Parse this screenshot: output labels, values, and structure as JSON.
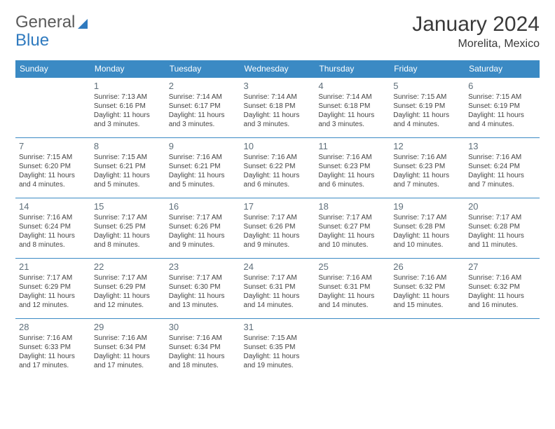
{
  "logo": {
    "part1": "General",
    "part2": "Blue"
  },
  "title": "January 2024",
  "location": "Morelita, Mexico",
  "colors": {
    "header_bg": "#3b8ac4",
    "header_text": "#ffffff",
    "rule": "#3b8ac4",
    "daynum": "#5f6f7a",
    "body_text": "#444444"
  },
  "weekdays": [
    "Sunday",
    "Monday",
    "Tuesday",
    "Wednesday",
    "Thursday",
    "Friday",
    "Saturday"
  ],
  "weeks": [
    [
      null,
      {
        "n": "1",
        "sr": "Sunrise: 7:13 AM",
        "ss": "Sunset: 6:16 PM",
        "d1": "Daylight: 11 hours",
        "d2": "and 3 minutes."
      },
      {
        "n": "2",
        "sr": "Sunrise: 7:14 AM",
        "ss": "Sunset: 6:17 PM",
        "d1": "Daylight: 11 hours",
        "d2": "and 3 minutes."
      },
      {
        "n": "3",
        "sr": "Sunrise: 7:14 AM",
        "ss": "Sunset: 6:18 PM",
        "d1": "Daylight: 11 hours",
        "d2": "and 3 minutes."
      },
      {
        "n": "4",
        "sr": "Sunrise: 7:14 AM",
        "ss": "Sunset: 6:18 PM",
        "d1": "Daylight: 11 hours",
        "d2": "and 3 minutes."
      },
      {
        "n": "5",
        "sr": "Sunrise: 7:15 AM",
        "ss": "Sunset: 6:19 PM",
        "d1": "Daylight: 11 hours",
        "d2": "and 4 minutes."
      },
      {
        "n": "6",
        "sr": "Sunrise: 7:15 AM",
        "ss": "Sunset: 6:19 PM",
        "d1": "Daylight: 11 hours",
        "d2": "and 4 minutes."
      }
    ],
    [
      {
        "n": "7",
        "sr": "Sunrise: 7:15 AM",
        "ss": "Sunset: 6:20 PM",
        "d1": "Daylight: 11 hours",
        "d2": "and 4 minutes."
      },
      {
        "n": "8",
        "sr": "Sunrise: 7:15 AM",
        "ss": "Sunset: 6:21 PM",
        "d1": "Daylight: 11 hours",
        "d2": "and 5 minutes."
      },
      {
        "n": "9",
        "sr": "Sunrise: 7:16 AM",
        "ss": "Sunset: 6:21 PM",
        "d1": "Daylight: 11 hours",
        "d2": "and 5 minutes."
      },
      {
        "n": "10",
        "sr": "Sunrise: 7:16 AM",
        "ss": "Sunset: 6:22 PM",
        "d1": "Daylight: 11 hours",
        "d2": "and 6 minutes."
      },
      {
        "n": "11",
        "sr": "Sunrise: 7:16 AM",
        "ss": "Sunset: 6:23 PM",
        "d1": "Daylight: 11 hours",
        "d2": "and 6 minutes."
      },
      {
        "n": "12",
        "sr": "Sunrise: 7:16 AM",
        "ss": "Sunset: 6:23 PM",
        "d1": "Daylight: 11 hours",
        "d2": "and 7 minutes."
      },
      {
        "n": "13",
        "sr": "Sunrise: 7:16 AM",
        "ss": "Sunset: 6:24 PM",
        "d1": "Daylight: 11 hours",
        "d2": "and 7 minutes."
      }
    ],
    [
      {
        "n": "14",
        "sr": "Sunrise: 7:16 AM",
        "ss": "Sunset: 6:24 PM",
        "d1": "Daylight: 11 hours",
        "d2": "and 8 minutes."
      },
      {
        "n": "15",
        "sr": "Sunrise: 7:17 AM",
        "ss": "Sunset: 6:25 PM",
        "d1": "Daylight: 11 hours",
        "d2": "and 8 minutes."
      },
      {
        "n": "16",
        "sr": "Sunrise: 7:17 AM",
        "ss": "Sunset: 6:26 PM",
        "d1": "Daylight: 11 hours",
        "d2": "and 9 minutes."
      },
      {
        "n": "17",
        "sr": "Sunrise: 7:17 AM",
        "ss": "Sunset: 6:26 PM",
        "d1": "Daylight: 11 hours",
        "d2": "and 9 minutes."
      },
      {
        "n": "18",
        "sr": "Sunrise: 7:17 AM",
        "ss": "Sunset: 6:27 PM",
        "d1": "Daylight: 11 hours",
        "d2": "and 10 minutes."
      },
      {
        "n": "19",
        "sr": "Sunrise: 7:17 AM",
        "ss": "Sunset: 6:28 PM",
        "d1": "Daylight: 11 hours",
        "d2": "and 10 minutes."
      },
      {
        "n": "20",
        "sr": "Sunrise: 7:17 AM",
        "ss": "Sunset: 6:28 PM",
        "d1": "Daylight: 11 hours",
        "d2": "and 11 minutes."
      }
    ],
    [
      {
        "n": "21",
        "sr": "Sunrise: 7:17 AM",
        "ss": "Sunset: 6:29 PM",
        "d1": "Daylight: 11 hours",
        "d2": "and 12 minutes."
      },
      {
        "n": "22",
        "sr": "Sunrise: 7:17 AM",
        "ss": "Sunset: 6:29 PM",
        "d1": "Daylight: 11 hours",
        "d2": "and 12 minutes."
      },
      {
        "n": "23",
        "sr": "Sunrise: 7:17 AM",
        "ss": "Sunset: 6:30 PM",
        "d1": "Daylight: 11 hours",
        "d2": "and 13 minutes."
      },
      {
        "n": "24",
        "sr": "Sunrise: 7:17 AM",
        "ss": "Sunset: 6:31 PM",
        "d1": "Daylight: 11 hours",
        "d2": "and 14 minutes."
      },
      {
        "n": "25",
        "sr": "Sunrise: 7:16 AM",
        "ss": "Sunset: 6:31 PM",
        "d1": "Daylight: 11 hours",
        "d2": "and 14 minutes."
      },
      {
        "n": "26",
        "sr": "Sunrise: 7:16 AM",
        "ss": "Sunset: 6:32 PM",
        "d1": "Daylight: 11 hours",
        "d2": "and 15 minutes."
      },
      {
        "n": "27",
        "sr": "Sunrise: 7:16 AM",
        "ss": "Sunset: 6:32 PM",
        "d1": "Daylight: 11 hours",
        "d2": "and 16 minutes."
      }
    ],
    [
      {
        "n": "28",
        "sr": "Sunrise: 7:16 AM",
        "ss": "Sunset: 6:33 PM",
        "d1": "Daylight: 11 hours",
        "d2": "and 17 minutes."
      },
      {
        "n": "29",
        "sr": "Sunrise: 7:16 AM",
        "ss": "Sunset: 6:34 PM",
        "d1": "Daylight: 11 hours",
        "d2": "and 17 minutes."
      },
      {
        "n": "30",
        "sr": "Sunrise: 7:16 AM",
        "ss": "Sunset: 6:34 PM",
        "d1": "Daylight: 11 hours",
        "d2": "and 18 minutes."
      },
      {
        "n": "31",
        "sr": "Sunrise: 7:15 AM",
        "ss": "Sunset: 6:35 PM",
        "d1": "Daylight: 11 hours",
        "d2": "and 19 minutes."
      },
      null,
      null,
      null
    ]
  ]
}
